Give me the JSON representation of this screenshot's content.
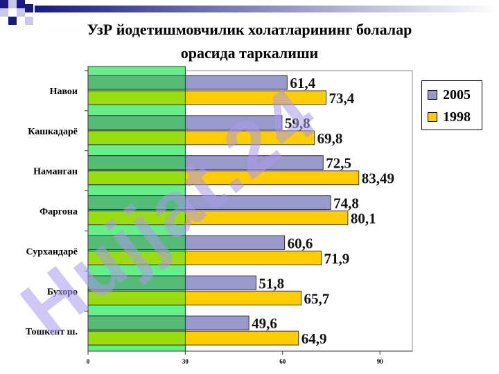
{
  "title": {
    "line1": "УзР йодетишмовчилик холатларининг болалар",
    "line2": "орасида таркалиши"
  },
  "watermark": "Hujjat.24",
  "colors": {
    "series_2005": "#9999cc",
    "series_1998": "#ffcc00",
    "band": "#66ee88",
    "band_overlay_2005": "#55bb77",
    "band_overlay_1998": "#99dd11",
    "watermark": "#aa99ee"
  },
  "chart_data": {
    "type": "bar",
    "orientation": "horizontal",
    "categories": [
      "Навои",
      "Кашкадарё",
      "Наманган",
      "Фаргона",
      "Сурхандарё",
      "Бухоро",
      "Тошкент ш."
    ],
    "series": [
      {
        "name": "2005",
        "values": [
          61.4,
          59.8,
          72.5,
          74.8,
          60.6,
          51.8,
          49.6
        ],
        "labels": [
          "61,4",
          "59,8",
          "72,5",
          "74,8",
          "60,6",
          "51,8",
          "49,6"
        ]
      },
      {
        "name": "1998",
        "values": [
          73.4,
          69.8,
          83.49,
          80.1,
          71.9,
          65.7,
          64.9
        ],
        "labels": [
          "73,4",
          "69,8",
          "83,49",
          "80,1",
          "71,9",
          "65,7",
          "64,9"
        ]
      }
    ],
    "xlim": [
      0,
      100
    ],
    "xticks": [
      "0",
      "30",
      "60",
      "90"
    ],
    "xtick_values": [
      0,
      30,
      60,
      90
    ],
    "grid": false,
    "legend_placement": "top-right"
  }
}
